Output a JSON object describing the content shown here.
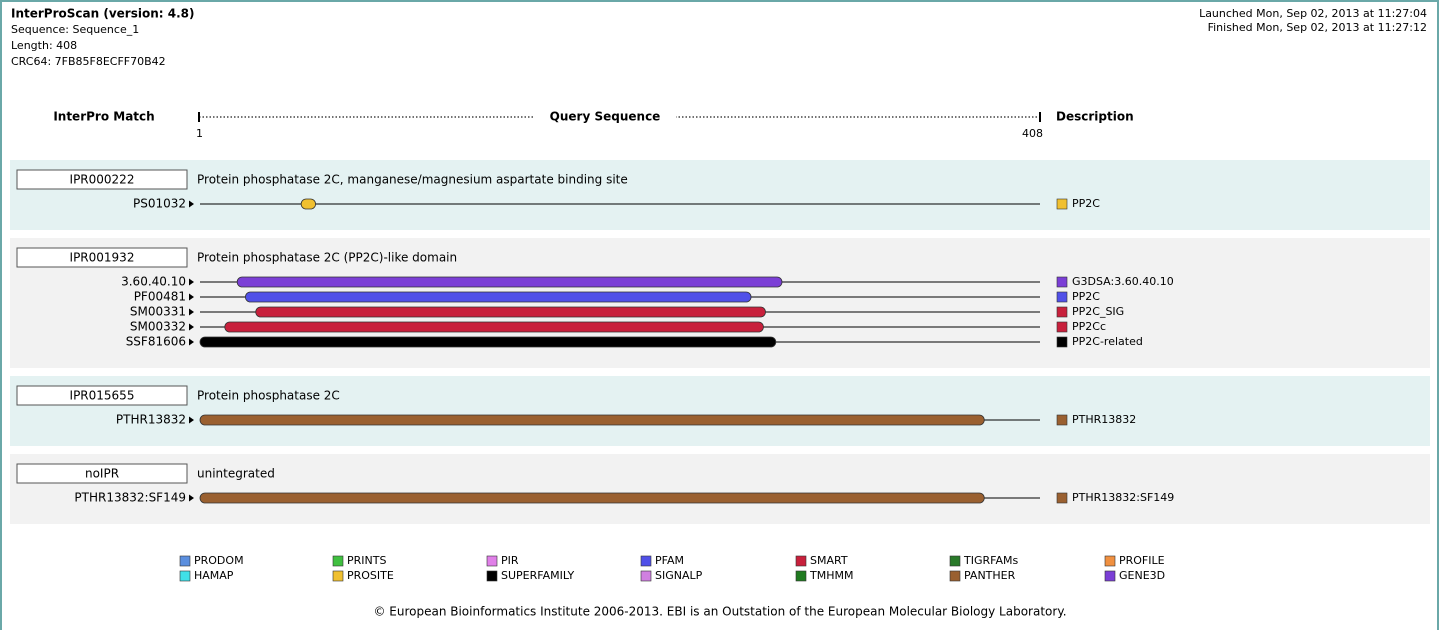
{
  "header": {
    "title": "InterProScan (version: 4.8)",
    "sequence": "Sequence: Sequence_1",
    "length": "Length: 408",
    "crc": "CRC64: 7FB85F8ECFF70B42",
    "launched": "Launched Mon, Sep 02, 2013 at 11:27:04",
    "finished": "Finished Mon, Sep 02, 2013 at 11:27:12"
  },
  "columns": {
    "match": "InterPro Match",
    "sequence": "Query Sequence",
    "description": "Description"
  },
  "axis": {
    "start": 1,
    "end": 408
  },
  "groups": [
    {
      "id": "IPR000222",
      "name": "Protein phosphatase 2C, manganese/magnesium aspartate binding site",
      "background": "#e4f2f2",
      "matches": [
        {
          "label": "PS01032",
          "start": 50,
          "end": 57,
          "color": "#f0c030",
          "description": "PP2C"
        }
      ]
    },
    {
      "id": "IPR001932",
      "name": "Protein phosphatase 2C (PP2C)-like domain",
      "background": "#f2f2f2",
      "matches": [
        {
          "label": "3.60.40.10",
          "start": 19,
          "end": 283,
          "color": "#7b3fd6",
          "description": "G3DSA:3.60.40.10"
        },
        {
          "label": "PF00481",
          "start": 23,
          "end": 268,
          "color": "#5050e8",
          "description": "PP2C"
        },
        {
          "label": "SM00331",
          "start": 28,
          "end": 275,
          "color": "#c8203c",
          "description": "PP2C_SIG"
        },
        {
          "label": "SM00332",
          "start": 13,
          "end": 274,
          "color": "#c8203c",
          "description": "PP2Cc"
        },
        {
          "label": "SSF81606",
          "start": 1,
          "end": 280,
          "color": "#000000",
          "description": "PP2C-related"
        }
      ]
    },
    {
      "id": "IPR015655",
      "name": "Protein phosphatase 2C",
      "background": "#e4f2f2",
      "matches": [
        {
          "label": "PTHR13832",
          "start": 1,
          "end": 381,
          "color": "#9a6030",
          "description": "PTHR13832"
        }
      ]
    },
    {
      "id": "noIPR",
      "name": "unintegrated",
      "background": "#f2f2f2",
      "matches": [
        {
          "label": "PTHR13832:SF149",
          "start": 1,
          "end": 381,
          "color": "#9a6030",
          "description": "PTHR13832:SF149"
        }
      ]
    }
  ],
  "legend": [
    {
      "name": "PRODOM",
      "color": "#5b8fdf"
    },
    {
      "name": "HAMAP",
      "color": "#40e0e8"
    },
    {
      "name": "PRINTS",
      "color": "#40c040"
    },
    {
      "name": "PROSITE",
      "color": "#f0c030"
    },
    {
      "name": "PIR",
      "color": "#e080e8"
    },
    {
      "name": "SUPERFAMILY",
      "color": "#000000"
    },
    {
      "name": "PFAM",
      "color": "#5050e8"
    },
    {
      "name": "SIGNALP",
      "color": "#d080e0"
    },
    {
      "name": "SMART",
      "color": "#c8203c"
    },
    {
      "name": "TMHMM",
      "color": "#207a20"
    },
    {
      "name": "TIGRFAMs",
      "color": "#2a7a2a"
    },
    {
      "name": "PANTHER",
      "color": "#9a6030"
    },
    {
      "name": "PROFILE",
      "color": "#f09040"
    },
    {
      "name": "GENE3D",
      "color": "#7b3fd6"
    }
  ],
  "footer": "© European Bioinformatics Institute 2006-2013. EBI is an Outstation of the European Molecular Biology Laboratory."
}
